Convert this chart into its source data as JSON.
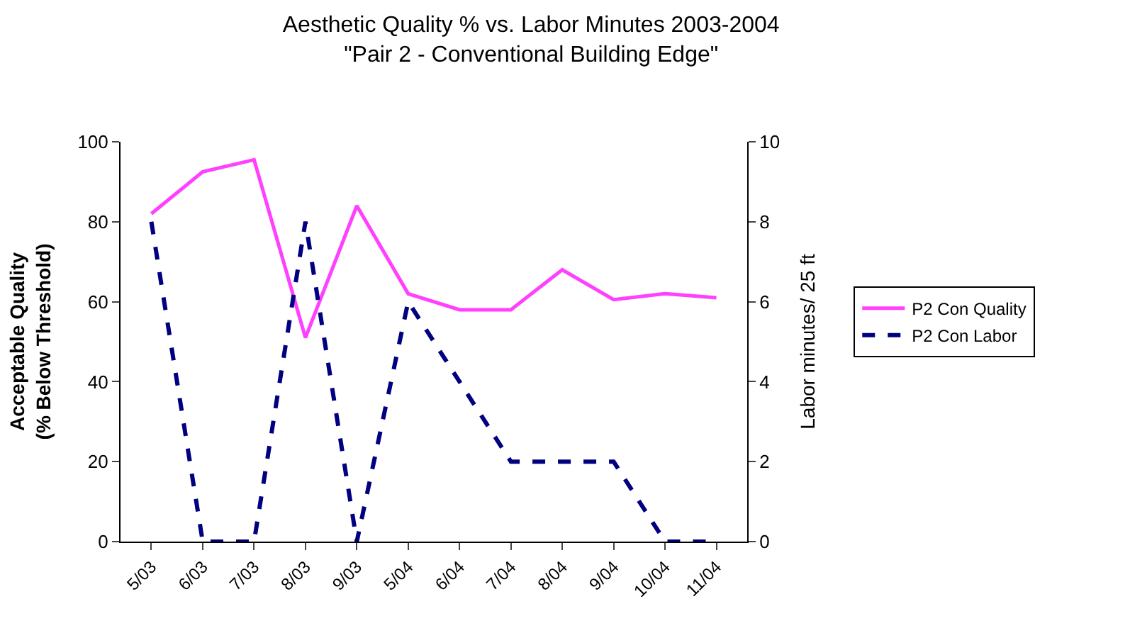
{
  "chart_data": {
    "type": "line",
    "title": "Aesthetic Quality % vs. Labor Minutes 2003-2004",
    "subtitle": "\"Pair 2 - Conventional Building Edge\"",
    "ylabel": "Acceptable Quality (% Below Threshold)",
    "y2label": "Labor minutes/ 25 ft",
    "categories": [
      "5/03",
      "6/03",
      "7/03",
      "8/03",
      "9/03",
      "5/04",
      "6/04",
      "7/04",
      "8/04",
      "9/04",
      "10/04",
      "11/04"
    ],
    "series": [
      {
        "name": "P2 Con Quality",
        "color": "#ff40ff",
        "values": [
          82,
          92.5,
          95.5,
          51,
          84,
          62,
          58,
          58,
          68,
          60.5,
          62,
          61
        ],
        "line_style": "solid"
      },
      {
        "name": "P2 Con Labor",
        "color": "#000080",
        "axis": "y2",
        "values": [
          8,
          0,
          0,
          8,
          0,
          6,
          4,
          2,
          2,
          2,
          0,
          0
        ],
        "line_style": "dashed"
      }
    ],
    "ylim": [
      0,
      100
    ],
    "yticks": [
      0,
      20,
      40,
      60,
      80,
      100
    ],
    "y2lim": [
      0,
      10
    ],
    "y2ticks": [
      0,
      2,
      4,
      6,
      8,
      10
    ],
    "grid": false,
    "legend": "right",
    "marker": "none"
  }
}
